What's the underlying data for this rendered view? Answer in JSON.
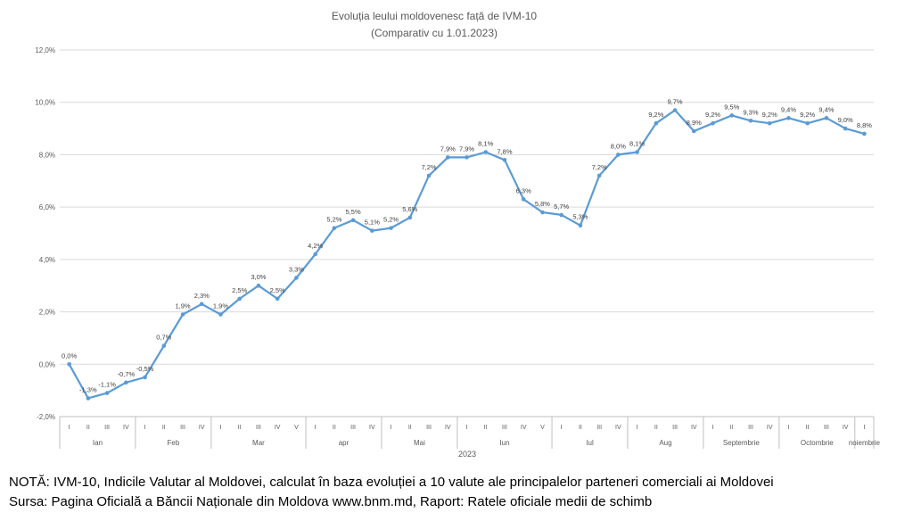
{
  "chart_data": {
    "type": "line",
    "title": "Evoluția leului moldovenesc față de IVM-10",
    "subtitle": "(Comparativ cu 1.01.2023)",
    "xlabel": "2023",
    "ylabel": "",
    "ylim": [
      -2.0,
      12.0
    ],
    "yticks": [
      "-2,0%",
      "0,0%",
      "2,0%",
      "4,0%",
      "6,0%",
      "8,0%",
      "10,0%",
      "12,0%"
    ],
    "grid": true,
    "legend": "none",
    "color": "#5b9bd5",
    "months": [
      {
        "name": "Ian",
        "weeks": [
          "I",
          "II",
          "III",
          "IV"
        ]
      },
      {
        "name": "Feb",
        "weeks": [
          "I",
          "II",
          "III",
          "IV"
        ]
      },
      {
        "name": "Mar",
        "weeks": [
          "I",
          "II",
          "III",
          "IV",
          "V"
        ]
      },
      {
        "name": "apr",
        "weeks": [
          "I",
          "II",
          "III",
          "IV"
        ]
      },
      {
        "name": "Mai",
        "weeks": [
          "I",
          "II",
          "III",
          "IV"
        ]
      },
      {
        "name": "Iun",
        "weeks": [
          "I",
          "II",
          "III",
          "IV",
          "V"
        ]
      },
      {
        "name": "Iul",
        "weeks": [
          "I",
          "II",
          "III",
          "IV"
        ]
      },
      {
        "name": "Aug",
        "weeks": [
          "I",
          "II",
          "III",
          "IV"
        ]
      },
      {
        "name": "Septembrie",
        "weeks": [
          "I",
          "II",
          "III",
          "IV"
        ]
      },
      {
        "name": "Octombrie",
        "weeks": [
          "I",
          "II",
          "III",
          "IV"
        ]
      },
      {
        "name": "noiembrie",
        "weeks": [
          "I"
        ]
      }
    ],
    "series": [
      {
        "values": [
          0.0,
          -1.3,
          -1.1,
          -0.7,
          -0.5,
          0.7,
          1.9,
          2.3,
          1.9,
          2.5,
          3.0,
          2.5,
          3.3,
          4.2,
          5.2,
          5.5,
          5.1,
          5.2,
          5.6,
          7.2,
          7.9,
          7.9,
          8.1,
          7.8,
          6.3,
          5.8,
          5.7,
          5.3,
          7.2,
          8.0,
          8.1,
          9.2,
          9.7,
          8.9,
          9.2,
          9.5,
          9.3,
          9.2,
          9.4,
          9.2,
          9.4,
          9.0,
          8.8
        ],
        "labels": [
          "0,0%",
          "-1,3%",
          "-1,1%",
          "-0,7%",
          "-0,5%",
          "0,7%",
          "1,9%",
          "2,3%",
          "1,9%",
          "2,5%",
          "3,0%",
          "2,5%",
          "3,3%",
          "4,2%",
          "5,2%",
          "5,5%",
          "5,1%",
          "5,2%",
          "5,6%",
          "7,2%",
          "7,9%",
          "7,9%",
          "8,1%",
          "7,8%",
          "6,3%",
          "5,8%",
          "5,7%",
          "5,3%",
          "7,2%",
          "8,0%",
          "8,1%",
          "9,2%",
          "9,7%",
          "8,9%",
          "9,2%",
          "9,5%",
          "9,3%",
          "9,2%",
          "9,4%",
          "9,2%",
          "9,4%",
          "9,0%",
          "8,8%"
        ]
      }
    ]
  },
  "notes": {
    "line1": "NOTĂ: IVM-10, Indicile Valutar al Moldovei, calculat în baza evoluției a 10 valute ale principalelor parteneri comerciali ai Moldovei",
    "line2": "Sursa: Pagina Oficială a Băncii Naționale din Moldova www.bnm.md, Raport: Ratele oficiale medii de schimb"
  }
}
